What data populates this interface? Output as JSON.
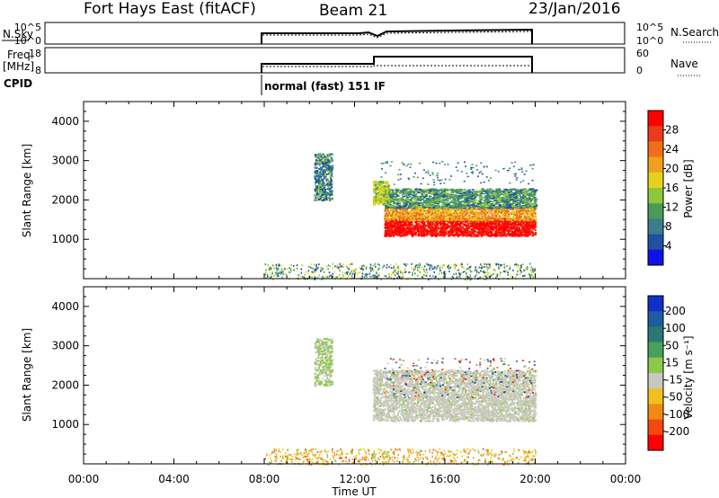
{
  "header": {
    "radar": "Fort Hays East (fitACF)",
    "beam": "Beam 21",
    "date": "23/Jan/2016"
  },
  "noise_panel": {
    "left_label": "N.Sky",
    "left_ticks": [
      "10^5",
      "10^0"
    ],
    "right_ticks": [
      "10^5",
      "10^0"
    ],
    "right_label": "N.Search"
  },
  "freq_panel": {
    "left_label_1": "Freq.",
    "left_label_2": "[MHz]",
    "left_ticks": [
      "18",
      "8"
    ],
    "right_ticks": [
      "60",
      "0"
    ],
    "right_label": "Nave"
  },
  "cpid": {
    "label": "CPID",
    "mode": "normal (fast) 151 IF"
  },
  "colors": {
    "power": [
      "#1010e8",
      "#2050a0",
      "#3c7c8c",
      "#4a9a5a",
      "#8cc83c",
      "#e6d21e",
      "#f0a01e",
      "#f06e1a",
      "#e83c1a",
      "#ff0000"
    ],
    "velocity": [
      "#ff0000",
      "#f04a10",
      "#f08a14",
      "#f0c020",
      "#c8c8c0",
      "#8cc84a",
      "#4aa05a",
      "#2c7870",
      "#205aa0",
      "#1030c8"
    ],
    "velocity_main": "#c8c8bc"
  },
  "chart_data": [
    {
      "type": "heatmap",
      "title": "",
      "quantity": "Power",
      "xlabel": "",
      "ylabel": "Slant Range [km]",
      "xlim": [
        "00:00",
        "24:00"
      ],
      "ylim": [
        0,
        4500
      ],
      "yticks": [
        "1000",
        "2000",
        "3000",
        "4000"
      ],
      "colorbar": {
        "label": "Power [dB]",
        "ticks": [
          "4",
          "8",
          "12",
          "16",
          "20",
          "24",
          "28"
        ],
        "range": [
          0,
          32
        ]
      },
      "regions": [
        {
          "time_range": [
            "10:10",
            "11:00"
          ],
          "range_km": [
            2000,
            3200
          ],
          "level_db": "4-16"
        },
        {
          "time_range": [
            "12:50",
            "13:20"
          ],
          "range_km": [
            1900,
            2500
          ],
          "level_db": "8-20"
        },
        {
          "time_range": [
            "13:20",
            "20:00"
          ],
          "range_km": [
            1100,
            1800
          ],
          "level_db": "24-30"
        },
        {
          "time_range": [
            "13:20",
            "20:00"
          ],
          "range_km": [
            1800,
            2300
          ],
          "level_db": "8-20"
        },
        {
          "time_range": [
            "08:00",
            "20:00"
          ],
          "range_km": [
            0,
            400
          ],
          "level_db": "4-16"
        }
      ]
    },
    {
      "type": "heatmap",
      "title": "",
      "quantity": "Velocity",
      "xlabel": "Time UT",
      "ylabel": "Slant Range [km]",
      "xlim": [
        "00:00",
        "24:00"
      ],
      "ylim": [
        0,
        4500
      ],
      "xticks": [
        "00:00",
        "04:00",
        "08:00",
        "12:00",
        "16:00",
        "20:00",
        "00:00"
      ],
      "yticks": [
        "1000",
        "2000",
        "3000",
        "4000"
      ],
      "colorbar": {
        "label": "Velocity [m s⁻¹]",
        "ticks": [
          "200",
          "100",
          "50",
          "15",
          "-15",
          "-50",
          "-100",
          "-200"
        ],
        "range": [
          -250,
          250
        ]
      },
      "regions": [
        {
          "time_range": [
            "10:10",
            "11:00"
          ],
          "range_km": [
            2000,
            3200
          ],
          "level_ms": "-15..50"
        },
        {
          "time_range": [
            "12:50",
            "20:00"
          ],
          "range_km": [
            1100,
            2700
          ],
          "level_ms": "-15..15"
        },
        {
          "time_range": [
            "08:00",
            "20:00"
          ],
          "range_km": [
            0,
            400
          ],
          "level_ms": "-100..50"
        }
      ]
    }
  ]
}
